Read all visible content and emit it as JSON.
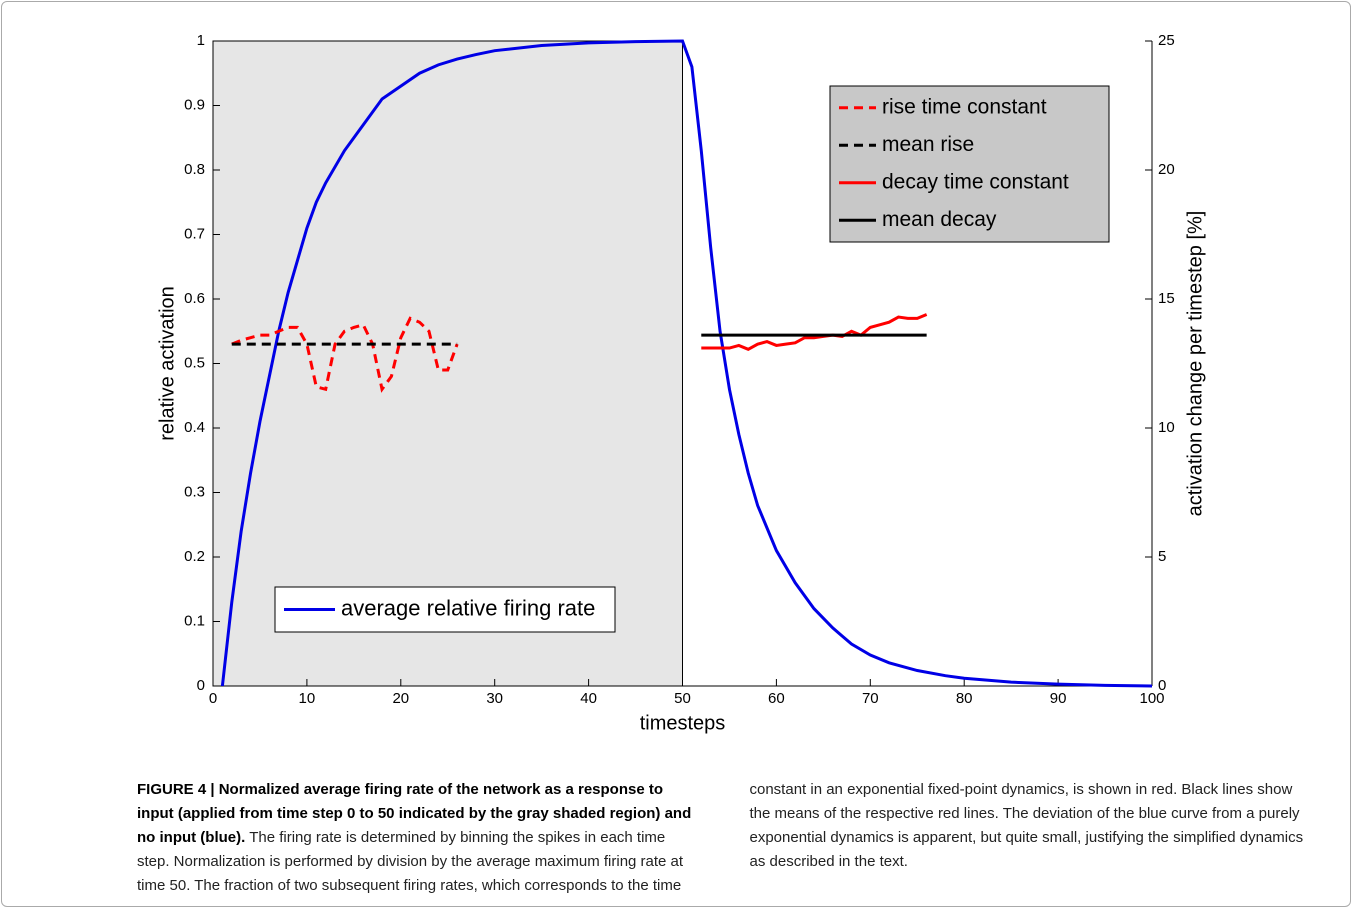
{
  "chart_data": {
    "type": "line",
    "xlabel": "timesteps",
    "ylabel": "relative activation",
    "y2label": "activation change per timestep [%]",
    "xlim": [
      0,
      100
    ],
    "xticks": [
      0,
      10,
      20,
      30,
      40,
      50,
      60,
      70,
      80,
      90,
      100
    ],
    "ylim": [
      0,
      1
    ],
    "yticks": [
      0,
      0.1,
      0.2,
      0.3,
      0.4,
      0.5,
      0.6,
      0.7,
      0.8,
      0.9,
      1
    ],
    "y2lim": [
      0,
      25
    ],
    "y2ticks": [
      0,
      5,
      10,
      15,
      20,
      25
    ],
    "shaded_xrange": [
      0,
      50
    ],
    "shade_color": "#e6e6e6",
    "series": [
      {
        "name": "average relative firing rate",
        "color": "#0000e6",
        "legend_loc": "lower left",
        "x": [
          1,
          2,
          3,
          4,
          5,
          6,
          7,
          8,
          9,
          10,
          11,
          12,
          14,
          16,
          18,
          20,
          22,
          24,
          26,
          28,
          30,
          35,
          40,
          45,
          50,
          51,
          52,
          53,
          54,
          55,
          56,
          57,
          58,
          60,
          62,
          64,
          66,
          68,
          70,
          72,
          75,
          78,
          80,
          85,
          90,
          95,
          100
        ],
        "values": [
          0,
          0.13,
          0.24,
          0.33,
          0.41,
          0.48,
          0.55,
          0.61,
          0.66,
          0.71,
          0.75,
          0.78,
          0.83,
          0.87,
          0.91,
          0.93,
          0.95,
          0.963,
          0.972,
          0.979,
          0.985,
          0.993,
          0.997,
          0.999,
          1,
          0.96,
          0.83,
          0.68,
          0.55,
          0.46,
          0.39,
          0.33,
          0.28,
          0.21,
          0.16,
          0.12,
          0.09,
          0.065,
          0.048,
          0.036,
          0.024,
          0.016,
          0.012,
          0.006,
          0.003,
          0.001,
          0
        ]
      },
      {
        "name": "rise time constant",
        "color": "#ff0000",
        "dash": true,
        "axis": "y2",
        "legend_loc": "upper right",
        "x": [
          2,
          3,
          4,
          5,
          6,
          7,
          8,
          9,
          10,
          11,
          12,
          13,
          14,
          15,
          16,
          17,
          18,
          19,
          20,
          21,
          22,
          23,
          24,
          25,
          26
        ],
        "values": [
          13.25,
          13.4,
          13.5,
          13.6,
          13.6,
          13.75,
          13.9,
          13.9,
          13.25,
          11.6,
          11.5,
          13.25,
          13.75,
          13.9,
          14,
          13.25,
          11.5,
          12,
          13.5,
          14.25,
          14.1,
          13.75,
          12.25,
          12.25,
          13.25
        ]
      },
      {
        "name": "mean rise",
        "color": "#000000",
        "dash": true,
        "axis": "y2",
        "legend_loc": "upper right",
        "x": [
          2,
          26
        ],
        "values": [
          13.25,
          13.25
        ]
      },
      {
        "name": "decay time constant",
        "color": "#ff0000",
        "axis": "y2",
        "legend_loc": "upper right",
        "x": [
          52,
          53,
          54,
          55,
          56,
          57,
          58,
          59,
          60,
          61,
          62,
          63,
          64,
          65,
          66,
          67,
          68,
          69,
          70,
          71,
          72,
          73,
          74,
          75,
          76
        ],
        "values": [
          13.1,
          13.1,
          13.1,
          13.1,
          13.2,
          13.05,
          13.25,
          13.35,
          13.2,
          13.25,
          13.3,
          13.5,
          13.5,
          13.55,
          13.6,
          13.55,
          13.75,
          13.6,
          13.9,
          14,
          14.1,
          14.3,
          14.25,
          14.25,
          14.4
        ]
      },
      {
        "name": "mean decay",
        "color": "#000000",
        "axis": "y2",
        "legend_loc": "upper right",
        "x": [
          52,
          76
        ],
        "values": [
          13.6,
          13.6
        ]
      }
    ]
  },
  "caption": {
    "label": "FIGURE 4 | Normalized average firing rate of the network as a response to input (applied from time step 0 to 50 indicated by the gray shaded region) and no input (blue).",
    "text": "The firing rate is determined by binning the spikes in each time step. Normalization is performed by division by the average maximum firing rate at time 50. The fraction of two subsequent firing rates, which corresponds to the time constant in an exponential fixed-point dynamics, is shown in red. Black lines show the means of the respective red lines. The deviation of the blue curve from a purely exponential dynamics is apparent, but quite small, justifying the simplified dynamics as described in the text."
  }
}
